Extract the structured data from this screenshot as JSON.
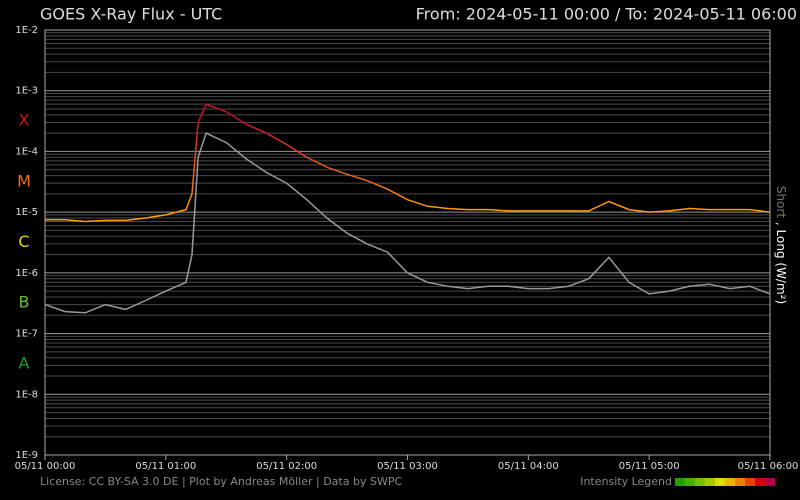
{
  "chart_data": {
    "type": "line",
    "title": "GOES X-Ray Flux - UTC",
    "range_label": "From: 2024-05-11 00:00  /  To: 2024-05-11 06:00",
    "y_label_short": "Short",
    "y_label_separator": ",",
    "y_label_long": "Long (W/m²)",
    "footer": "License: CC BY-SA 3.0 DE | Plot by Andreas Möller | Data by SWPC",
    "legend_title": "Intensity Legend",
    "legend_colors": [
      "#22a000",
      "#44b000",
      "#77c000",
      "#aac800",
      "#dddd00",
      "#f0b000",
      "#f08000",
      "#e84000",
      "#d80010",
      "#b00050"
    ],
    "log_scale": true,
    "grid": true,
    "flare_classes": [
      {
        "label": "X",
        "color": "#cc1020"
      },
      {
        "label": "M",
        "color": "#f07010"
      },
      {
        "label": "C",
        "color": "#d8d820"
      },
      {
        "label": "B",
        "color": "#60c020"
      },
      {
        "label": "A",
        "color": "#20a020"
      }
    ],
    "xlim": [
      "05/11 00:00",
      "05/11 06:00"
    ],
    "xticks": [
      "05/11 00:00",
      "05/11 01:00",
      "05/11 02:00",
      "05/11 03:00",
      "05/11 04:00",
      "05/11 05:00",
      "05/11 06:00"
    ],
    "ylim": [
      1e-09,
      0.01
    ],
    "yticks": [
      {
        "value": 1e-09,
        "label": "1E-9"
      },
      {
        "value": 1e-08,
        "label": "1E-8"
      },
      {
        "value": 1e-07,
        "label": "1E-7"
      },
      {
        "value": 1e-06,
        "label": "1E-6"
      },
      {
        "value": 1e-05,
        "label": "1E-5"
      },
      {
        "value": 0.0001,
        "label": "1E-4"
      },
      {
        "value": 0.001,
        "label": "1E-3"
      },
      {
        "value": 0.01,
        "label": "1E-2"
      }
    ],
    "x": [
      "05/11 00:00",
      "05/11 00:10",
      "05/11 00:20",
      "05/11 00:30",
      "05/11 00:40",
      "05/11 00:50",
      "05/11 01:00",
      "05/11 01:10",
      "05/11 01:13",
      "05/11 01:16",
      "05/11 01:20",
      "05/11 01:30",
      "05/11 01:40",
      "05/11 01:50",
      "05/11 02:00",
      "05/11 02:10",
      "05/11 02:20",
      "05/11 02:30",
      "05/11 02:40",
      "05/11 02:50",
      "05/11 03:00",
      "05/11 03:10",
      "05/11 03:20",
      "05/11 03:30",
      "05/11 03:40",
      "05/11 03:50",
      "05/11 04:00",
      "05/11 04:10",
      "05/11 04:20",
      "05/11 04:30",
      "05/11 04:40",
      "05/11 04:50",
      "05/11 05:00",
      "05/11 05:10",
      "05/11 05:20",
      "05/11 05:30",
      "05/11 05:40",
      "05/11 05:50",
      "05/11 06:00"
    ],
    "series": [
      {
        "name": "Long",
        "color": "#ffa000",
        "high_color": "#c8102e",
        "values": [
          7.5e-06,
          7.5e-06,
          7e-06,
          7.3e-06,
          7.3e-06,
          8e-06,
          9e-06,
          1.1e-05,
          2e-05,
          0.0003,
          0.0006,
          0.00045,
          0.00028,
          0.0002,
          0.00013,
          8e-05,
          5.5e-05,
          4.2e-05,
          3.3e-05,
          2.4e-05,
          1.6e-05,
          1.25e-05,
          1.15e-05,
          1.1e-05,
          1.1e-05,
          1.05e-05,
          1.05e-05,
          1.05e-05,
          1.05e-05,
          1.05e-05,
          1.5e-05,
          1.1e-05,
          1e-05,
          1.05e-05,
          1.15e-05,
          1.1e-05,
          1.1e-05,
          1.1e-05,
          1e-05
        ]
      },
      {
        "name": "Short",
        "color": "#9a9a9a",
        "values": [
          3e-07,
          2.3e-07,
          2.2e-07,
          3e-07,
          2.5e-07,
          3.5e-07,
          5e-07,
          7e-07,
          2e-06,
          8e-05,
          0.0002,
          0.00014,
          7.5e-05,
          4.5e-05,
          3e-05,
          1.6e-05,
          8e-06,
          4.5e-06,
          3e-06,
          2.2e-06,
          1e-06,
          7e-07,
          6e-07,
          5.5e-07,
          6e-07,
          6e-07,
          5.5e-07,
          5.5e-07,
          6e-07,
          8e-07,
          1.8e-06,
          7e-07,
          4.5e-07,
          5e-07,
          6e-07,
          6.5e-07,
          5.5e-07,
          6e-07,
          4.5e-07
        ]
      }
    ]
  }
}
